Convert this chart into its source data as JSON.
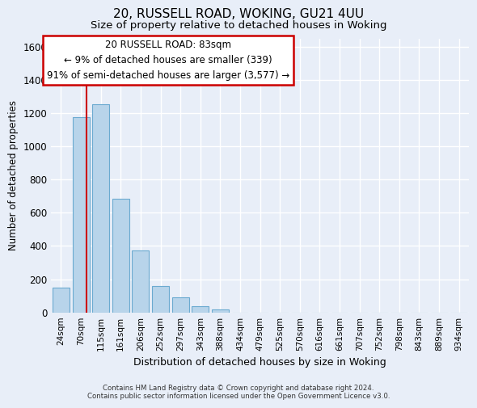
{
  "title_line1": "20, RUSSELL ROAD, WOKING, GU21 4UU",
  "title_line2": "Size of property relative to detached houses in Woking",
  "xlabel": "Distribution of detached houses by size in Woking",
  "ylabel": "Number of detached properties",
  "bar_labels": [
    "24sqm",
    "70sqm",
    "115sqm",
    "161sqm",
    "206sqm",
    "252sqm",
    "297sqm",
    "343sqm",
    "388sqm",
    "434sqm",
    "479sqm",
    "525sqm",
    "570sqm",
    "616sqm",
    "661sqm",
    "707sqm",
    "752sqm",
    "798sqm",
    "843sqm",
    "889sqm",
    "934sqm"
  ],
  "bar_values": [
    150,
    1175,
    1255,
    685,
    375,
    160,
    90,
    35,
    20,
    0,
    0,
    0,
    0,
    0,
    0,
    0,
    0,
    0,
    0,
    0,
    0
  ],
  "bar_color": "#b8d4ea",
  "bar_edge_color": "#6baad0",
  "vline_x": 1.27,
  "vline_color": "#cc0000",
  "ylim": [
    0,
    1650
  ],
  "yticks": [
    0,
    200,
    400,
    600,
    800,
    1000,
    1200,
    1400,
    1600
  ],
  "annotation_title": "20 RUSSELL ROAD: 83sqm",
  "annotation_line2": "← 9% of detached houses are smaller (339)",
  "annotation_line3": "91% of semi-detached houses are larger (3,577) →",
  "annotation_box_color": "#ffffff",
  "annotation_box_edgecolor": "#cc0000",
  "footer_line1": "Contains HM Land Registry data © Crown copyright and database right 2024.",
  "footer_line2": "Contains public sector information licensed under the Open Government Licence v3.0.",
  "bg_color": "#e8eef8",
  "grid_color": "#ffffff",
  "title_fontsize": 11,
  "subtitle_fontsize": 9.5
}
